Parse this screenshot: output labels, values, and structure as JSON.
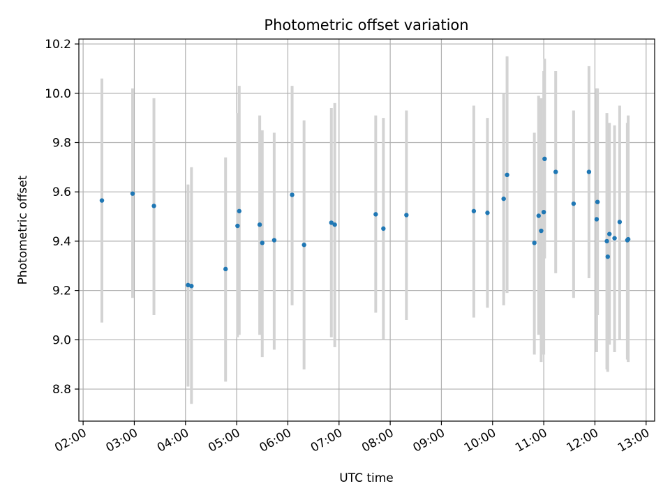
{
  "chart_data": {
    "type": "scatter",
    "title": "Photometric offset variation",
    "xlabel": "UTC time",
    "ylabel": "Photometric offset",
    "x_ticks": [
      "02:00",
      "03:00",
      "04:00",
      "05:00",
      "06:00",
      "07:00",
      "08:00",
      "09:00",
      "10:00",
      "11:00",
      "12:00",
      "13:00"
    ],
    "y_ticks": [
      "8.8",
      "9.0",
      "9.2",
      "9.4",
      "9.6",
      "9.8",
      "10.0",
      "10.2"
    ],
    "xlim": [
      "01:55",
      "13:10"
    ],
    "ylim": [
      8.67,
      10.22
    ],
    "grid": true,
    "colors": {
      "points": "#1f77b4",
      "errorbars": "#d3d3d3",
      "grid": "#b0b0b0"
    },
    "points": [
      {
        "time": "02:22",
        "value": 9.565,
        "low": 9.07,
        "high": 10.06
      },
      {
        "time": "02:58",
        "value": 9.593,
        "low": 9.17,
        "high": 10.02
      },
      {
        "time": "03:23",
        "value": 9.543,
        "low": 9.1,
        "high": 9.98
      },
      {
        "time": "04:03",
        "value": 9.222,
        "low": 8.81,
        "high": 9.63
      },
      {
        "time": "04:07",
        "value": 9.218,
        "low": 8.74,
        "high": 9.7
      },
      {
        "time": "04:47",
        "value": 9.287,
        "low": 8.83,
        "high": 9.74
      },
      {
        "time": "05:01",
        "value": 9.462,
        "low": 9.01,
        "high": 9.92
      },
      {
        "time": "05:03",
        "value": 9.522,
        "low": 9.02,
        "high": 10.03
      },
      {
        "time": "05:27",
        "value": 9.467,
        "low": 9.02,
        "high": 9.91
      },
      {
        "time": "05:30",
        "value": 9.393,
        "low": 8.93,
        "high": 9.85
      },
      {
        "time": "05:44",
        "value": 9.404,
        "low": 8.96,
        "high": 9.84
      },
      {
        "time": "06:05",
        "value": 9.588,
        "low": 9.14,
        "high": 10.03
      },
      {
        "time": "06:19",
        "value": 9.385,
        "low": 8.88,
        "high": 9.89
      },
      {
        "time": "06:51",
        "value": 9.475,
        "low": 9.01,
        "high": 9.94
      },
      {
        "time": "06:55",
        "value": 9.467,
        "low": 8.97,
        "high": 9.96
      },
      {
        "time": "07:43",
        "value": 9.509,
        "low": 9.11,
        "high": 9.91
      },
      {
        "time": "07:52",
        "value": 9.451,
        "low": 9.0,
        "high": 9.9
      },
      {
        "time": "08:19",
        "value": 9.506,
        "low": 9.08,
        "high": 9.93
      },
      {
        "time": "09:38",
        "value": 9.522,
        "low": 9.09,
        "high": 9.95
      },
      {
        "time": "09:54",
        "value": 9.515,
        "low": 9.13,
        "high": 9.9
      },
      {
        "time": "10:13",
        "value": 9.572,
        "low": 9.14,
        "high": 10.0
      },
      {
        "time": "10:17",
        "value": 9.669,
        "low": 9.19,
        "high": 10.15
      },
      {
        "time": "10:49",
        "value": 9.393,
        "low": 8.94,
        "high": 9.84
      },
      {
        "time": "10:54",
        "value": 9.503,
        "low": 9.02,
        "high": 9.99
      },
      {
        "time": "10:57",
        "value": 9.442,
        "low": 8.91,
        "high": 9.98
      },
      {
        "time": "11:00",
        "value": 9.518,
        "low": 8.94,
        "high": 10.09
      },
      {
        "time": "11:01",
        "value": 9.734,
        "low": 9.33,
        "high": 10.14
      },
      {
        "time": "11:14",
        "value": 9.681,
        "low": 9.27,
        "high": 10.09
      },
      {
        "time": "11:35",
        "value": 9.552,
        "low": 9.17,
        "high": 9.93
      },
      {
        "time": "11:53",
        "value": 9.681,
        "low": 9.25,
        "high": 10.11
      },
      {
        "time": "12:02",
        "value": 9.489,
        "low": 8.95,
        "high": 10.02
      },
      {
        "time": "12:03",
        "value": 9.559,
        "low": 9.1,
        "high": 10.02
      },
      {
        "time": "12:14",
        "value": 9.4,
        "low": 8.88,
        "high": 9.92
      },
      {
        "time": "12:15",
        "value": 9.337,
        "low": 8.87,
        "high": 9.8
      },
      {
        "time": "12:17",
        "value": 9.429,
        "low": 8.98,
        "high": 9.88
      },
      {
        "time": "12:23",
        "value": 9.412,
        "low": 8.95,
        "high": 9.87
      },
      {
        "time": "12:29",
        "value": 9.478,
        "low": 9.0,
        "high": 9.95
      },
      {
        "time": "12:38",
        "value": 9.404,
        "low": 8.92,
        "high": 9.88
      },
      {
        "time": "12:39",
        "value": 9.408,
        "low": 8.91,
        "high": 9.91
      }
    ]
  }
}
